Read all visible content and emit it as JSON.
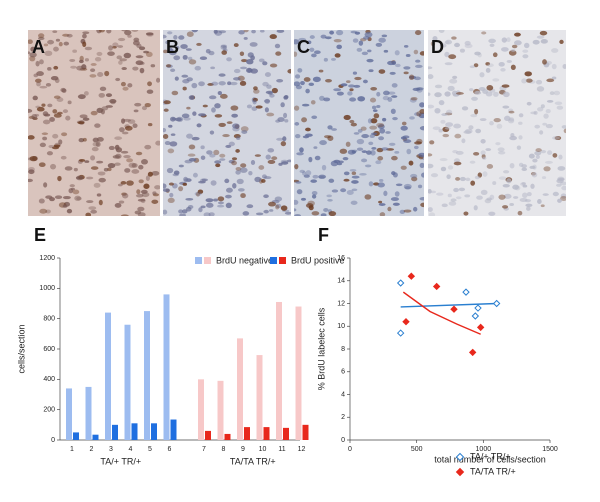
{
  "panels": [
    "A",
    "B",
    "C",
    "D"
  ],
  "chart_data": [
    {
      "type": "bar",
      "title": "E",
      "y_label": "cells/section",
      "groups": [
        {
          "name": "TA/+ TR/+",
          "categories": [
            "1",
            "2",
            "3",
            "4",
            "5",
            "6"
          ]
        },
        {
          "name": "TA/TA TR/+",
          "categories": [
            "7",
            "8",
            "9",
            "10",
            "11",
            "12"
          ]
        }
      ],
      "series": [
        {
          "name": "BrdU negative",
          "colors": [
            "#9dbcf0",
            "#f7c8c8"
          ],
          "values": [
            340,
            350,
            840,
            760,
            850,
            960,
            400,
            390,
            670,
            560,
            910,
            880
          ]
        },
        {
          "name": "BrdU positive",
          "colors": [
            "#1f6fe0",
            "#e8281c"
          ],
          "values": [
            50,
            35,
            100,
            110,
            110,
            135,
            60,
            40,
            85,
            85,
            80,
            100
          ]
        }
      ],
      "ylim": [
        0,
        1200
      ],
      "yticks": [
        0,
        200,
        400,
        600,
        800,
        1000,
        1200
      ]
    },
    {
      "type": "scatter",
      "title": "F",
      "x_label": "total number of cells/section",
      "y_label": "% BrdU labelec cells",
      "series": [
        {
          "name": "TA/+ TR/+",
          "color": "#2a7fd0",
          "marker": "open-diamond",
          "x": [
            380,
            380,
            870,
            940,
            960,
            1100
          ],
          "values": [
            13.8,
            9.4,
            13.0,
            10.9,
            11.6,
            12.0
          ],
          "trend": {
            "x": [
              380,
              1100
            ],
            "values": [
              11.7,
              12.0
            ]
          }
        },
        {
          "name": "TA/TA TR/+",
          "color": "#e8281c",
          "marker": "filled-diamond",
          "x": [
            420,
            460,
            650,
            780,
            920,
            980
          ],
          "values": [
            10.4,
            14.4,
            13.5,
            11.5,
            7.7,
            9.9
          ],
          "trend": {
            "x": [
              400,
              600,
              800,
              980
            ],
            "values": [
              13.0,
              11.3,
              10.2,
              9.3
            ]
          }
        }
      ],
      "xlim": [
        0,
        1500
      ],
      "xticks": [
        0,
        500,
        1000,
        1500
      ],
      "ylim": [
        0,
        16
      ],
      "yticks": [
        0,
        2,
        4,
        6,
        8,
        10,
        12,
        14,
        16
      ]
    }
  ]
}
